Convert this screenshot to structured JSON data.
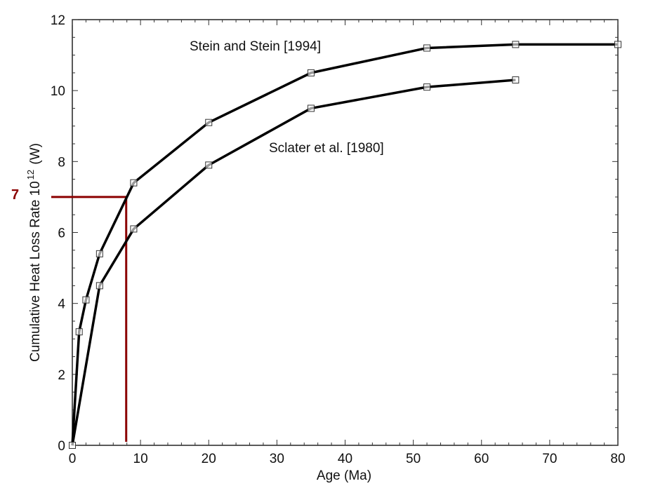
{
  "chart_data": {
    "type": "line",
    "title": "",
    "xlabel": "Age (Ma)",
    "ylabel": "Cumulative Heat Loss Rate 10",
    "ylabel_superscript": "12",
    "ylabel_unit": " (W)",
    "xlim": [
      0,
      80
    ],
    "ylim": [
      0,
      12
    ],
    "xticks": [
      0,
      10,
      20,
      30,
      40,
      50,
      60,
      70,
      80
    ],
    "yticks": [
      0,
      2,
      4,
      6,
      8,
      10,
      12
    ],
    "grid": false,
    "legend": "none",
    "series": [
      {
        "name": "Stein and Stein [1994]",
        "color": "#000000",
        "marker": "square",
        "x": [
          0,
          1,
          2,
          4,
          9,
          20,
          35,
          52,
          65,
          80
        ],
        "y": [
          0,
          3.2,
          4.1,
          5.4,
          7.4,
          9.1,
          10.5,
          11.2,
          11.3,
          11.3
        ]
      },
      {
        "name": "Sclater et al. [1980]",
        "color": "#000000",
        "marker": "square",
        "x": [
          0,
          4,
          9,
          20,
          35,
          52,
          65
        ],
        "y": [
          0,
          4.5,
          6.1,
          7.9,
          9.5,
          10.1,
          10.3
        ]
      }
    ],
    "annotations": [
      {
        "text": "Stein and Stein [1994]",
        "x": 16,
        "y": 11.2
      },
      {
        "text": "Sclater et al. [1980]",
        "x": 28,
        "y": 8.3
      },
      {
        "text": "7",
        "type": "reference-lines",
        "color": "#8b0000",
        "y_value": 7,
        "x_value": 7.9
      }
    ]
  }
}
